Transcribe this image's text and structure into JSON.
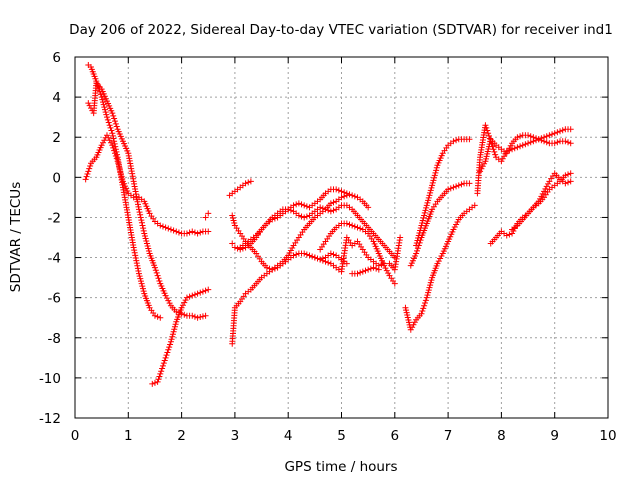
{
  "chart_data": {
    "type": "scatter",
    "title": "Day 206 of 2022, Sidereal Day-to-day VTEC variation (SDTVAR) for receiver ind1",
    "xlabel": "GPS time / hours",
    "ylabel": "SDTVAR / TECUs",
    "xlim": [
      0,
      10
    ],
    "ylim": [
      -12,
      6
    ],
    "xticks": [
      0,
      1,
      2,
      3,
      4,
      5,
      6,
      7,
      8,
      9,
      10
    ],
    "yticks": [
      -12,
      -10,
      -8,
      -6,
      -4,
      -2,
      0,
      2,
      4,
      6
    ],
    "grid": true,
    "marker": "+",
    "series_color": "#ff0000",
    "series": [
      {
        "name": "arc-1",
        "x": [
          0.25,
          0.3,
          0.4,
          0.5,
          0.6,
          0.7,
          0.8,
          0.9,
          1.0,
          1.1,
          1.2,
          1.3,
          1.4,
          1.5,
          1.6
        ],
        "y": [
          5.6,
          5.5,
          4.8,
          4.0,
          3.0,
          2.2,
          1.0,
          -0.5,
          -2.0,
          -3.5,
          -4.8,
          -5.8,
          -6.5,
          -6.9,
          -7.0
        ]
      },
      {
        "name": "arc-2",
        "x": [
          0.25,
          0.35,
          0.4,
          0.5,
          0.6,
          0.7,
          0.8,
          0.9,
          1.0,
          1.1,
          1.2,
          1.3,
          1.4,
          1.5,
          1.6,
          1.7,
          1.8,
          1.9,
          2.0,
          2.1,
          2.2,
          2.3,
          2.45
        ],
        "y": [
          3.7,
          3.2,
          4.7,
          4.4,
          3.8,
          3.2,
          2.4,
          1.8,
          1.2,
          -0.2,
          -1.6,
          -2.8,
          -3.8,
          -4.5,
          -5.3,
          -5.9,
          -6.4,
          -6.7,
          -6.8,
          -6.9,
          -6.9,
          -7.0,
          -6.9
        ]
      },
      {
        "name": "arc-3",
        "x": [
          0.2,
          0.3,
          0.4,
          0.5,
          0.6,
          0.7,
          0.8,
          0.9,
          1.0,
          1.1,
          1.2,
          1.3,
          1.4,
          1.5,
          1.6,
          1.7,
          1.8,
          1.9,
          2.0,
          2.1,
          2.2,
          2.3,
          2.4,
          2.5
        ],
        "y": [
          -0.1,
          0.7,
          1.0,
          1.6,
          2.1,
          1.6,
          0.8,
          -0.2,
          -0.8,
          -1.0,
          -1.0,
          -1.2,
          -1.8,
          -2.2,
          -2.4,
          -2.5,
          -2.6,
          -2.7,
          -2.8,
          -2.8,
          -2.7,
          -2.8,
          -2.7,
          -2.7
        ]
      },
      {
        "name": "arc-4",
        "x": [
          1.45,
          1.55,
          1.6,
          1.7,
          1.8,
          1.9,
          2.0,
          2.1,
          2.2,
          2.3,
          2.4,
          2.5
        ],
        "y": [
          -10.3,
          -10.2,
          -9.8,
          -9.0,
          -8.2,
          -7.2,
          -6.5,
          -6.0,
          -5.9,
          -5.8,
          -5.7,
          -5.6
        ]
      },
      {
        "name": "arc-5",
        "x": [
          2.45,
          2.5
        ],
        "y": [
          -2.0,
          -1.8
        ]
      },
      {
        "name": "arc-6",
        "x": [
          2.9,
          3.0,
          3.1,
          3.2,
          3.3
        ],
        "y": [
          -0.9,
          -0.7,
          -0.5,
          -0.3,
          -0.2
        ]
      },
      {
        "name": "arc-7",
        "x": [
          2.95,
          3.0,
          3.1,
          3.2,
          3.3,
          3.4,
          3.5,
          3.6,
          3.7,
          3.8,
          3.9,
          4.0,
          4.1,
          4.2,
          4.3,
          4.4,
          4.5,
          4.6,
          4.7,
          4.8,
          4.9,
          5.0,
          5.1
        ],
        "y": [
          -8.3,
          -6.5,
          -6.2,
          -5.8,
          -5.6,
          -5.3,
          -5.0,
          -4.8,
          -4.6,
          -4.4,
          -4.2,
          -3.9,
          -3.4,
          -3.0,
          -2.6,
          -2.3,
          -2.0,
          -1.8,
          -1.6,
          -1.3,
          -1.2,
          -1.0,
          -0.9
        ]
      },
      {
        "name": "arc-8",
        "x": [
          2.95,
          3.0,
          3.1,
          3.2,
          3.3,
          3.4,
          3.5,
          3.6,
          3.7,
          3.8,
          3.9,
          4.0,
          4.1,
          4.2,
          4.3,
          4.4,
          4.5,
          4.6,
          4.7,
          4.8,
          4.9,
          5.0,
          5.1,
          5.2,
          5.3,
          5.4,
          5.5
        ],
        "y": [
          -3.3,
          -3.5,
          -3.6,
          -3.5,
          -3.3,
          -3.0,
          -2.6,
          -2.3,
          -2.1,
          -2.0,
          -1.8,
          -1.6,
          -1.4,
          -1.3,
          -1.4,
          -1.5,
          -1.3,
          -1.1,
          -0.8,
          -0.6,
          -0.6,
          -0.7,
          -0.8,
          -0.9,
          -1.0,
          -1.2,
          -1.5
        ]
      },
      {
        "name": "arc-9",
        "x": [
          2.95,
          3.0,
          3.1,
          3.2,
          3.3,
          3.4,
          3.5,
          3.6,
          3.7,
          3.8,
          3.9,
          4.0,
          4.1,
          4.2,
          4.3,
          4.4,
          4.5,
          4.6,
          4.7,
          4.8,
          4.9,
          5.0,
          5.1
        ],
        "y": [
          -1.9,
          -2.4,
          -2.8,
          -3.2,
          -3.5,
          -3.8,
          -4.2,
          -4.5,
          -4.6,
          -4.5,
          -4.3,
          -4.1,
          -3.9,
          -3.8,
          -3.8,
          -3.9,
          -4.0,
          -4.1,
          -4.0,
          -3.8,
          -3.9,
          -4.1,
          -4.3
        ]
      },
      {
        "name": "arc-10",
        "x": [
          3.1,
          3.2,
          3.3,
          3.4,
          3.5,
          3.6,
          3.7,
          3.8,
          3.9,
          4.0,
          4.1,
          4.2,
          4.3,
          4.4,
          4.5,
          4.6,
          4.7,
          4.8,
          4.9,
          5.0,
          5.1,
          5.2,
          5.3,
          5.4,
          5.5,
          5.6,
          5.7,
          5.8,
          5.9,
          6.0
        ],
        "y": [
          -3.5,
          -3.3,
          -3.1,
          -2.9,
          -2.6,
          -2.3,
          -2.0,
          -1.8,
          -1.6,
          -1.6,
          -1.7,
          -1.9,
          -2.0,
          -1.9,
          -1.7,
          -1.5,
          -1.6,
          -1.7,
          -1.6,
          -1.4,
          -1.4,
          -1.6,
          -1.9,
          -2.2,
          -2.5,
          -2.8,
          -3.1,
          -3.4,
          -3.7,
          -4.0
        ]
      },
      {
        "name": "arc-11",
        "x": [
          4.6,
          4.7,
          4.8,
          4.9,
          5.0,
          5.1,
          5.2,
          5.3,
          5.4,
          5.5,
          5.6,
          5.7,
          5.8,
          5.9,
          6.0
        ],
        "y": [
          -3.6,
          -3.2,
          -2.8,
          -2.5,
          -2.3,
          -2.3,
          -2.4,
          -2.5,
          -2.6,
          -2.8,
          -3.2,
          -3.8,
          -4.4,
          -4.9,
          -5.3
        ]
      },
      {
        "name": "arc-12",
        "x": [
          4.5,
          4.6,
          4.7,
          4.8,
          4.9,
          5.0,
          5.1,
          5.2,
          5.3,
          5.4,
          5.5,
          5.6,
          5.7,
          5.8
        ],
        "y": [
          -4.0,
          -4.1,
          -4.2,
          -4.3,
          -4.5,
          -4.7,
          -3.0,
          -3.4,
          -3.2,
          -3.6,
          -4.0,
          -4.2,
          -4.4,
          -4.3
        ]
      },
      {
        "name": "arc-13",
        "x": [
          5.2,
          5.3,
          5.4,
          5.5,
          5.6,
          5.7
        ],
        "y": [
          -4.8,
          -4.8,
          -4.7,
          -4.6,
          -4.5,
          -4.6
        ]
      },
      {
        "name": "arc-14",
        "x": [
          5.9,
          6.0,
          6.05,
          6.1
        ],
        "y": [
          -4.3,
          -4.6,
          -3.8,
          -3.0
        ]
      },
      {
        "name": "arc-15",
        "x": [
          6.2,
          6.3,
          6.4,
          6.5,
          6.6,
          6.7,
          6.8,
          6.9,
          7.0,
          7.1,
          7.2,
          7.3,
          7.4,
          7.5
        ],
        "y": [
          -6.5,
          -7.6,
          -7.1,
          -6.8,
          -6.0,
          -5.0,
          -4.3,
          -3.8,
          -3.2,
          -2.6,
          -2.1,
          -1.8,
          -1.6,
          -1.4
        ]
      },
      {
        "name": "arc-16",
        "x": [
          6.3,
          6.4,
          6.5,
          6.6,
          6.7,
          6.8,
          6.9,
          7.0,
          7.1,
          7.2,
          7.3,
          7.4
        ],
        "y": [
          -4.4,
          -3.8,
          -3.0,
          -2.3,
          -1.6,
          -1.2,
          -0.9,
          -0.6,
          -0.5,
          -0.4,
          -0.3,
          -0.3
        ]
      },
      {
        "name": "arc-17",
        "x": [
          6.4,
          6.5,
          6.6,
          6.7,
          6.8,
          6.9,
          7.0,
          7.1,
          7.2,
          7.3,
          7.4
        ],
        "y": [
          -3.4,
          -2.4,
          -1.4,
          -0.4,
          0.6,
          1.2,
          1.6,
          1.8,
          1.9,
          1.9,
          1.9
        ]
      },
      {
        "name": "arc-18",
        "x": [
          7.55,
          7.6,
          7.7,
          7.8,
          7.9,
          8.0,
          8.1,
          8.2,
          8.3,
          8.4,
          8.5,
          8.6,
          8.7,
          8.8,
          8.9,
          9.0,
          9.1,
          9.2,
          9.3
        ],
        "y": [
          -0.8,
          1.0,
          2.6,
          1.8,
          1.0,
          0.8,
          1.3,
          1.4,
          1.5,
          1.6,
          1.7,
          1.8,
          1.9,
          2.0,
          2.1,
          2.2,
          2.3,
          2.4,
          2.4
        ]
      },
      {
        "name": "arc-19",
        "x": [
          7.6,
          7.7,
          7.8,
          7.9,
          8.0,
          8.1,
          8.2,
          8.3,
          8.4,
          8.5,
          8.6,
          8.7,
          8.8,
          8.9,
          9.0,
          9.1,
          9.2,
          9.3
        ],
        "y": [
          0.3,
          0.8,
          1.9,
          1.6,
          1.4,
          1.2,
          1.7,
          2.0,
          2.1,
          2.1,
          2.0,
          1.9,
          1.8,
          1.7,
          1.7,
          1.8,
          1.8,
          1.7
        ]
      },
      {
        "name": "arc-20",
        "x": [
          7.8,
          7.9,
          8.0,
          8.1,
          8.2,
          8.3,
          8.4,
          8.5,
          8.6,
          8.7,
          8.8,
          8.9,
          9.0,
          9.1,
          9.2,
          9.3
        ],
        "y": [
          -3.3,
          -3.0,
          -2.7,
          -2.9,
          -2.8,
          -2.3,
          -2.0,
          -1.8,
          -1.5,
          -1.3,
          -1.0,
          -0.6,
          -0.4,
          -0.2,
          0.1,
          0.2
        ]
      },
      {
        "name": "arc-21",
        "x": [
          8.2,
          8.3,
          8.4,
          8.5,
          8.6,
          8.7,
          8.8,
          8.9,
          9.0,
          9.1,
          9.2,
          9.3
        ],
        "y": [
          -2.6,
          -2.4,
          -2.1,
          -1.8,
          -1.5,
          -1.2,
          -0.7,
          -0.2,
          0.2,
          -0.1,
          -0.3,
          -0.2
        ]
      }
    ]
  }
}
